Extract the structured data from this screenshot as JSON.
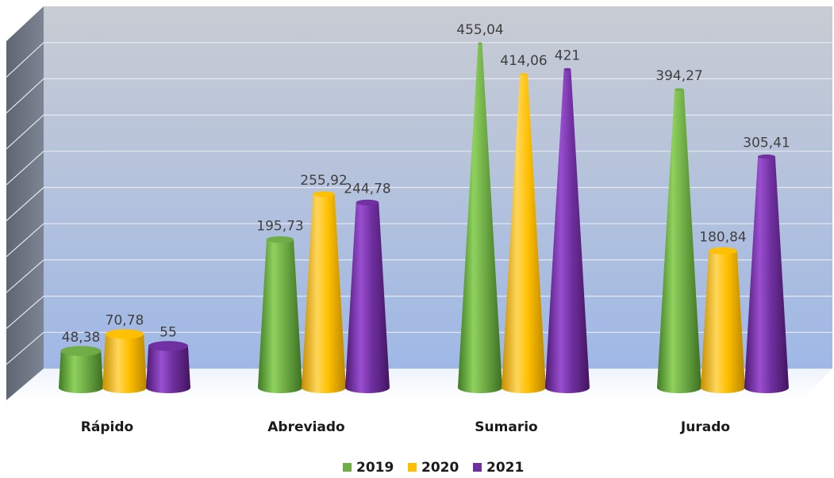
{
  "chart_data": {
    "type": "bar",
    "style": "3d-cones",
    "categories": [
      "Rápido",
      "Abreviado",
      "Sumario",
      "Jurado"
    ],
    "series": [
      {
        "name": "2019",
        "color": "#70ad47",
        "values": [
          48.38,
          195.73,
          455.04,
          394.27
        ],
        "labels": [
          "48,38",
          "195,73",
          "455,04",
          "394,27"
        ]
      },
      {
        "name": "2020",
        "color": "#ffc000",
        "values": [
          70.78,
          255.92,
          414.06,
          180.84
        ],
        "labels": [
          "70,78",
          "255,92",
          "414,06",
          "180,84"
        ]
      },
      {
        "name": "2021",
        "color": "#7030a0",
        "values": [
          55,
          244.78,
          421,
          305.41
        ],
        "labels": [
          "55",
          "244,78",
          "421",
          "305,41"
        ]
      }
    ],
    "ylim": [
      0,
      500
    ],
    "grid": true,
    "legend_position": "bottom",
    "xlabel": "",
    "ylabel": ""
  }
}
